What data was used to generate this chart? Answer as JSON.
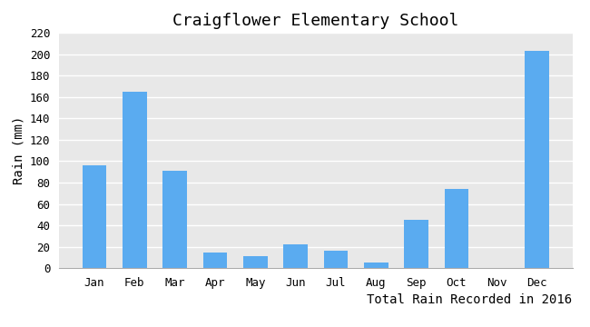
{
  "title": "Craigflower Elementary School",
  "xlabel": "Total Rain Recorded in 2016",
  "ylabel": "Rain (mm)",
  "months": [
    "Jan",
    "Feb",
    "Mar",
    "Apr",
    "May",
    "Jun",
    "Jul",
    "Aug",
    "Sep",
    "Oct",
    "Nov",
    "Dec"
  ],
  "values": [
    96,
    165,
    91,
    15,
    11,
    22,
    16,
    5,
    45,
    74,
    0,
    203
  ],
  "bar_color": "#5aabf0",
  "fig_bg_color": "#ffffff",
  "plot_bg_color": "#e8e8e8",
  "grid_color": "#ffffff",
  "ylim": [
    0,
    220
  ],
  "yticks": [
    0,
    20,
    40,
    60,
    80,
    100,
    120,
    140,
    160,
    180,
    200,
    220
  ],
  "title_fontsize": 13,
  "label_fontsize": 10,
  "tick_fontsize": 9
}
